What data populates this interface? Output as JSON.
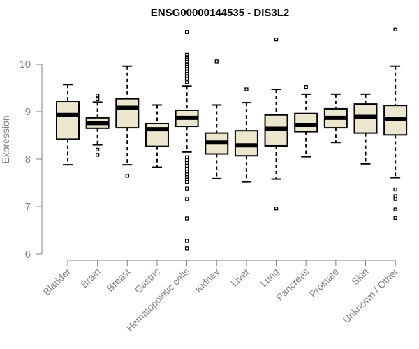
{
  "chart_data": {
    "type": "boxplot",
    "title": "ENSG00000144535 - DIS3L2",
    "ylabel": "Expression",
    "xlabel": "",
    "ylim": [
      6,
      10.8
    ],
    "yticks": [
      6,
      7,
      8,
      9,
      10
    ],
    "grid": false,
    "legend": "none",
    "colors": {
      "box_fill": "#ede6cf",
      "box_stroke": "#000000",
      "median": "#000000",
      "axis": "#808080",
      "text": "#808080"
    },
    "categories": [
      "Bladder",
      "Brain",
      "Breast",
      "Gastric",
      "Hematopoietic cells",
      "Kidney",
      "Liver",
      "Lung",
      "Pancreas",
      "Prostate",
      "Skin",
      "Unknown / Other"
    ],
    "boxes": [
      {
        "name": "Bladder",
        "whisker_low": 7.88,
        "q1": 8.42,
        "median": 8.93,
        "q3": 9.22,
        "whisker_high": 9.57,
        "outliers": []
      },
      {
        "name": "Brain",
        "whisker_low": 8.3,
        "q1": 8.65,
        "median": 8.76,
        "q3": 8.87,
        "whisker_high": 9.2,
        "outliers": [
          9.34,
          9.27,
          8.2,
          8.09
        ]
      },
      {
        "name": "Breast",
        "whisker_low": 7.88,
        "q1": 8.66,
        "median": 9.08,
        "q3": 9.27,
        "whisker_high": 9.96,
        "outliers": [
          7.65
        ]
      },
      {
        "name": "Gastric",
        "whisker_low": 7.83,
        "q1": 8.27,
        "median": 8.63,
        "q3": 8.75,
        "whisker_high": 9.14,
        "outliers": []
      },
      {
        "name": "Hematopoietic cells",
        "whisker_low": 8.15,
        "q1": 8.69,
        "median": 8.87,
        "q3": 9.03,
        "whisker_high": 9.54,
        "outliers": [
          10.68,
          10.2,
          10.15,
          10.1,
          10.05,
          10.0,
          9.95,
          9.9,
          9.85,
          9.8,
          9.75,
          9.7,
          9.62,
          8.04,
          7.98,
          7.92,
          7.86,
          7.8,
          7.74,
          7.68,
          7.62,
          7.57,
          7.52,
          7.38,
          7.16,
          6.75,
          6.28,
          6.12
        ]
      },
      {
        "name": "Kidney",
        "whisker_low": 7.59,
        "q1": 8.11,
        "median": 8.35,
        "q3": 8.55,
        "whisker_high": 9.14,
        "outliers": [
          10.06
        ]
      },
      {
        "name": "Liver",
        "whisker_low": 7.52,
        "q1": 8.07,
        "median": 8.29,
        "q3": 8.6,
        "whisker_high": 9.19,
        "outliers": [
          9.47
        ]
      },
      {
        "name": "Lung",
        "whisker_low": 7.58,
        "q1": 8.28,
        "median": 8.64,
        "q3": 8.93,
        "whisker_high": 9.47,
        "outliers": [
          10.52,
          6.96
        ]
      },
      {
        "name": "Pancreas",
        "whisker_low": 8.05,
        "q1": 8.58,
        "median": 8.72,
        "q3": 8.96,
        "whisker_high": 9.37,
        "outliers": [
          9.52
        ]
      },
      {
        "name": "Prostate",
        "whisker_low": 8.35,
        "q1": 8.66,
        "median": 8.87,
        "q3": 9.06,
        "whisker_high": 9.37,
        "outliers": []
      },
      {
        "name": "Skin",
        "whisker_low": 7.9,
        "q1": 8.55,
        "median": 8.89,
        "q3": 9.16,
        "whisker_high": 9.37,
        "outliers": []
      },
      {
        "name": "Unknown / Other",
        "whisker_low": 7.61,
        "q1": 8.51,
        "median": 8.85,
        "q3": 9.13,
        "whisker_high": 9.96,
        "outliers": [
          10.73,
          7.36,
          7.22,
          7.16,
          6.94,
          6.76
        ]
      }
    ]
  }
}
